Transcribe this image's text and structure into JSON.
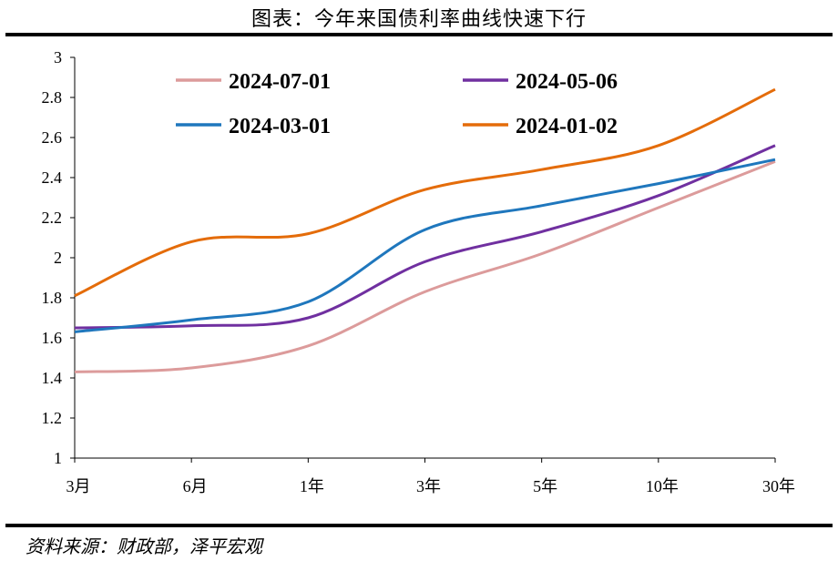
{
  "header": {
    "title": "图表：今年来国债利率曲线快速下行"
  },
  "footer": {
    "source": "资料来源：财政部，泽平宏观"
  },
  "chart_data": {
    "type": "line",
    "title": "图表：今年来国债利率曲线快速下行",
    "xlabel": "",
    "ylabel": "",
    "categories": [
      "3月",
      "6月",
      "1年",
      "3年",
      "5年",
      "10年",
      "30年"
    ],
    "ylim": [
      1,
      3
    ],
    "yticks": [
      "1",
      "1.2",
      "1.4",
      "1.6",
      "1.8",
      "2",
      "2.2",
      "2.4",
      "2.6",
      "2.8",
      "3"
    ],
    "grid": false,
    "legend_position": "top",
    "series": [
      {
        "name": "2024-07-01",
        "color": "#dc9b9b",
        "values": [
          1.43,
          1.45,
          1.56,
          1.83,
          2.02,
          2.25,
          2.48
        ]
      },
      {
        "name": "2024-05-06",
        "color": "#7030a0",
        "values": [
          1.65,
          1.66,
          1.7,
          1.98,
          2.13,
          2.31,
          2.56
        ]
      },
      {
        "name": "2024-03-01",
        "color": "#1f77bd",
        "values": [
          1.63,
          1.69,
          1.78,
          2.14,
          2.26,
          2.37,
          2.49
        ]
      },
      {
        "name": "2024-01-02",
        "color": "#e46c0a",
        "values": [
          1.81,
          2.08,
          2.12,
          2.34,
          2.44,
          2.56,
          2.84
        ]
      }
    ]
  }
}
